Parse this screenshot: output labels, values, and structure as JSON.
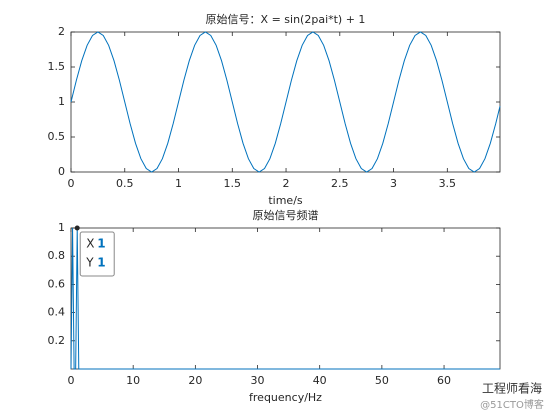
{
  "chart_data": [
    {
      "type": "line",
      "title": "原始信号：X = sin(2pai*t) + 1",
      "x_label": "time/s",
      "x": [
        0,
        0.05,
        0.1,
        0.15,
        0.2,
        0.25,
        0.3,
        0.35,
        0.4,
        0.45,
        0.5,
        0.55,
        0.6,
        0.65,
        0.7,
        0.75,
        0.8,
        0.85,
        0.9,
        0.95,
        1,
        1.05,
        1.1,
        1.15,
        1.2,
        1.25,
        1.3,
        1.35,
        1.4,
        1.45,
        1.5,
        1.55,
        1.6,
        1.65,
        1.7,
        1.75,
        1.8,
        1.85,
        1.9,
        1.95,
        2,
        2.05,
        2.1,
        2.15,
        2.2,
        2.25,
        2.3,
        2.35,
        2.4,
        2.45,
        2.5,
        2.55,
        2.6,
        2.65,
        2.7,
        2.75,
        2.8,
        2.85,
        2.9,
        2.95,
        3,
        3.05,
        3.1,
        3.15,
        3.2,
        3.25,
        3.3,
        3.35,
        3.4,
        3.45,
        3.5,
        3.55,
        3.6,
        3.65,
        3.7,
        3.75,
        3.8,
        3.85,
        3.9,
        3.95,
        3.99
      ],
      "series": [
        {
          "color": "#0072bd",
          "values": [
            1,
            1.31,
            1.59,
            1.81,
            1.95,
            2,
            1.95,
            1.81,
            1.59,
            1.31,
            1,
            0.69,
            0.41,
            0.19,
            0.05,
            0,
            0.05,
            0.19,
            0.41,
            0.69,
            1,
            1.31,
            1.59,
            1.81,
            1.95,
            2,
            1.95,
            1.81,
            1.59,
            1.31,
            1,
            0.69,
            0.41,
            0.19,
            0.05,
            0,
            0.05,
            0.19,
            0.41,
            0.69,
            1,
            1.31,
            1.59,
            1.81,
            1.95,
            2,
            1.95,
            1.81,
            1.59,
            1.31,
            1,
            0.69,
            0.41,
            0.19,
            0.05,
            0,
            0.05,
            0.19,
            0.41,
            0.69,
            1,
            1.31,
            1.59,
            1.81,
            1.95,
            2,
            1.95,
            1.81,
            1.59,
            1.31,
            1,
            0.69,
            0.41,
            0.19,
            0.05,
            0,
            0.05,
            0.19,
            0.41,
            0.69,
            0.94
          ]
        }
      ],
      "xlim": [
        0,
        3.99
      ],
      "ylim": [
        0,
        2
      ],
      "xticks": [
        0,
        0.5,
        1,
        1.5,
        2,
        2.5,
        3,
        3.5
      ],
      "yticks": [
        0,
        0.5,
        1,
        1.5,
        2
      ]
    },
    {
      "type": "line",
      "title": "原始信号频谱",
      "x_label": "frequency/Hz",
      "x": [
        0,
        0.25,
        0.5,
        0.75,
        1,
        1.25,
        69
      ],
      "series": [
        {
          "color": "#0072bd",
          "values": [
            0,
            1,
            0,
            0,
            1,
            0,
            0
          ]
        }
      ],
      "xlim": [
        0,
        69
      ],
      "ylim": [
        0,
        1
      ],
      "xticks": [
        0,
        10,
        20,
        30,
        40,
        50,
        60
      ],
      "yticks": [
        0.2,
        0.4,
        0.6,
        0.8,
        1
      ],
      "datatip": {
        "point": 4,
        "x_label": "X",
        "x_value": 1,
        "y_label": "Y",
        "y_value": 1
      }
    }
  ],
  "watermark": [
    "工程师看海",
    "@51CTO博客"
  ]
}
